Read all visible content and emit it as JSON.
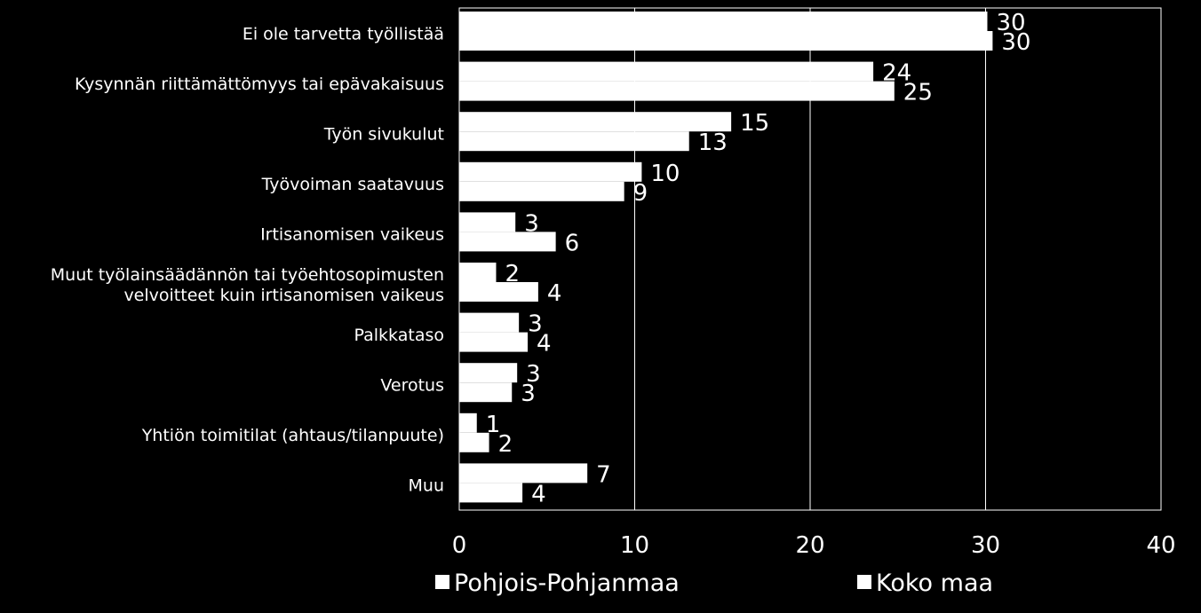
{
  "chart_data": {
    "type": "bar",
    "orientation": "horizontal",
    "categories": [
      [
        "Ei ole tarvetta työllistää"
      ],
      [
        "Kysynnän riittämättömyys tai epävakaisuus"
      ],
      [
        "Työn sivukulut"
      ],
      [
        "Työvoiman saatavuus"
      ],
      [
        "Irtisanomisen vaikeus"
      ],
      [
        "Muut työlainsäädännön tai työehtosopimusten",
        "velvoitteet kuin irtisanomisen vaikeus"
      ],
      [
        "Palkkataso"
      ],
      [
        "Verotus"
      ],
      [
        "Yhtiön toimitilat (ahtaus/tilanpuute)"
      ],
      [
        "Muu"
      ]
    ],
    "series": [
      {
        "name": "Pohjois-Pohjanmaa",
        "values": [
          30.1,
          23.6,
          15.5,
          10.4,
          3.2,
          2.1,
          3.4,
          3.3,
          1.0,
          7.3
        ],
        "labels": [
          "30",
          "24",
          "15",
          "10",
          "3",
          "2",
          "3",
          "3",
          "1",
          "7"
        ]
      },
      {
        "name": "Koko maa",
        "values": [
          30.4,
          24.8,
          13.1,
          9.4,
          5.5,
          4.5,
          3.9,
          3.0,
          1.7,
          3.6
        ],
        "labels": [
          "30",
          "25",
          "13",
          "9",
          "6",
          "4",
          "4",
          "3",
          "2",
          "4"
        ]
      }
    ],
    "xlim": [
      0,
      40
    ],
    "xticks": [
      0,
      10,
      20,
      30,
      40
    ],
    "grid": true,
    "legend_position": "bottom",
    "colors": {
      "background": "#000000",
      "bars": "#ffffff",
      "gridlines": "#ffffff",
      "text": "#ffffff"
    }
  }
}
